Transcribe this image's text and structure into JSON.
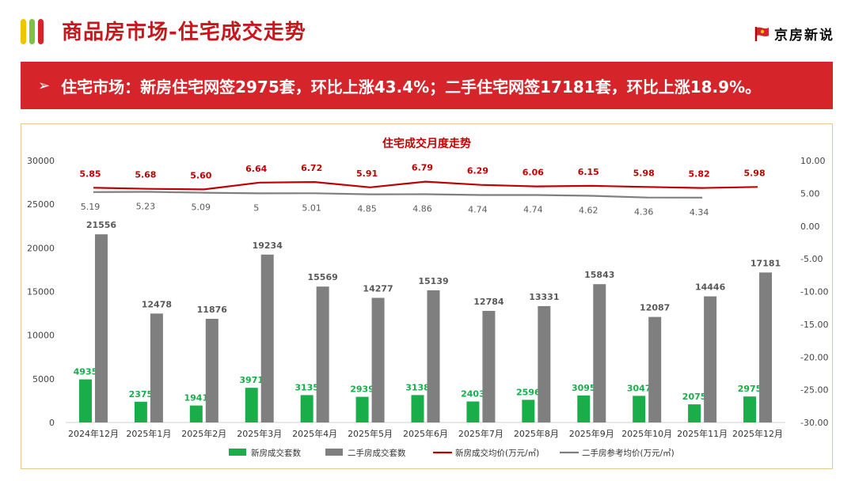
{
  "header": {
    "title": "商品房市场-住宅成交走势",
    "brand_name": "京房新说",
    "deco_colors": [
      "#f2c400",
      "#7ec143",
      "#d5242a"
    ],
    "logo_icon": "red-flag-logo-icon"
  },
  "banner": {
    "arrow_icon": "chevron-right-icon",
    "text": "住宅市场：新房住宅网签2975套，环比上涨43.4%；二手住宅网签17181套，环比上涨18.9%。"
  },
  "chart_data": {
    "type": "bar",
    "title": "住宅成交月度走势",
    "categories": [
      "2024年12月",
      "2025年1月",
      "2025年2月",
      "2025年3月",
      "2025年4月",
      "2025年5月",
      "2025年6月",
      "2025年7月",
      "2025年8月",
      "2025年9月",
      "2025年10月",
      "2025年11月",
      "2025年12月"
    ],
    "series": [
      {
        "name": "新房成交套数",
        "kind": "bar",
        "axis": "left",
        "color": "#1aae4a",
        "values": [
          4935,
          2375,
          1941,
          3971,
          3135,
          2939,
          3138,
          2403,
          2596,
          3095,
          3047,
          2075,
          2975
        ]
      },
      {
        "name": "二手房成交套数",
        "kind": "bar",
        "axis": "left",
        "color": "#7f7f7f",
        "values": [
          21556,
          12478,
          11876,
          19234,
          15569,
          14277,
          15139,
          12784,
          13331,
          15843,
          12087,
          14446,
          17181
        ]
      },
      {
        "name": "新房成交均价(万元/㎡)",
        "kind": "line",
        "axis": "right",
        "color": "#c00000",
        "values": [
          5.85,
          5.68,
          5.6,
          6.64,
          6.72,
          5.91,
          6.79,
          6.29,
          6.06,
          6.15,
          5.98,
          5.82,
          5.98
        ]
      },
      {
        "name": "二手房参考均价(万元/㎡)",
        "kind": "line",
        "axis": "right",
        "color": "#7f7f7f",
        "values": [
          5.19,
          5.23,
          5.09,
          5,
          5.01,
          4.85,
          4.86,
          4.74,
          4.74,
          4.62,
          4.36,
          4.34,
          null
        ]
      }
    ],
    "left_axis": {
      "min": 0,
      "max": 30000,
      "ticks": [
        "0",
        "5000",
        "10000",
        "15000",
        "20000",
        "25000",
        "30000"
      ]
    },
    "right_axis": {
      "min": -30,
      "max": 10,
      "ticks": [
        "-30.00",
        "-25.00",
        "-20.00",
        "-15.00",
        "-10.00",
        "-5.00",
        "0.00",
        "5.00",
        "10.00"
      ]
    },
    "line_label_text": [
      "5.85",
      "5.68",
      "5.60",
      "6.64",
      "6.72",
      "5.91",
      "6.79",
      "6.29",
      "6.06",
      "6.15",
      "5.98",
      "5.82",
      "5.98"
    ],
    "line2_label_text": [
      "5.19",
      "5.23",
      "5.09",
      "5",
      "5.01",
      "4.85",
      "4.86",
      "4.74",
      "4.74",
      "4.62",
      "4.36",
      "4.34"
    ],
    "legend_position": "bottom",
    "grid": false
  }
}
